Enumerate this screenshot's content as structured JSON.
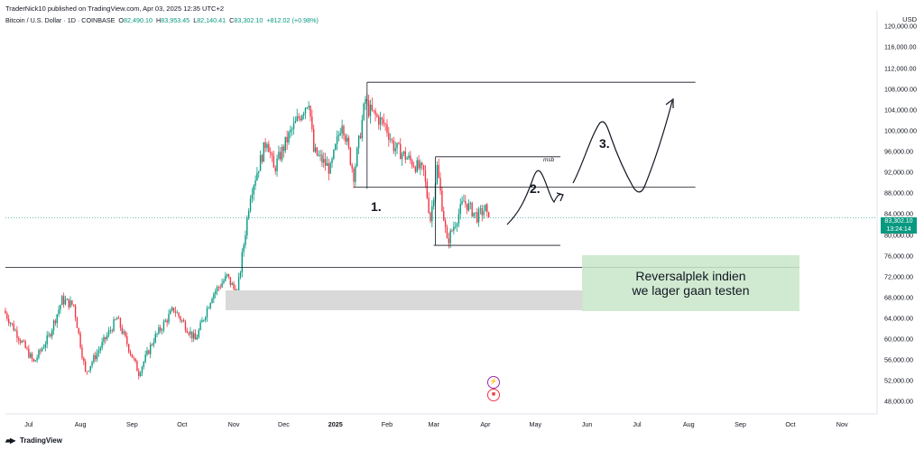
{
  "header": {
    "publisher_line": "TraderNick10 published on TradingView.com, Apr 03, 2025 12:35 UTC+2",
    "symbol_line": "Bitcoin / U.S. Dollar · 1D · COINBASE",
    "ohlc": {
      "o_label": "O",
      "o": "82,490.10",
      "h_label": "H",
      "h": "83,953.45",
      "l_label": "L",
      "l": "82,140.41",
      "c_label": "C",
      "c": "83,302.10",
      "change": "+812.02 (+0.98%)"
    },
    "currency": "USD"
  },
  "price_tag": {
    "price": "83,302.10",
    "countdown": "13:24:14"
  },
  "footer": {
    "logo_text": "TradingView"
  },
  "annotations": {
    "label_1": "1.",
    "label_2": "2.",
    "label_3": "3.",
    "msb": "msb",
    "green_zone_text_line1": "Reversalplek indien",
    "green_zone_text_line2": "we lager gaan testen"
  },
  "colors": {
    "up": "#089981",
    "down": "#f23645",
    "grey_zone": "#d9d9d9",
    "green_zone": "#c8e6c9"
  },
  "chart_data": {
    "type": "candlestick",
    "symbol": "Bitcoin / U.S. Dollar",
    "interval": "1D",
    "exchange": "COINBASE",
    "y_ticks": [
      "48,000.00",
      "52,000.00",
      "56,000.00",
      "60,000.00",
      "64,000.00",
      "68,000.00",
      "72,000.00",
      "76,000.00",
      "80,000.00",
      "84,000.00",
      "88,000.00",
      "92,000.00",
      "96,000.00",
      "100,000.00",
      "104,000.00",
      "108,000.00",
      "112,000.00",
      "116,000.00",
      "120,000.00"
    ],
    "y_range": [
      46000,
      123000
    ],
    "x_ticks": [
      "Jul",
      "Aug",
      "Sep",
      "Oct",
      "Nov",
      "Dec",
      "2025",
      "Feb",
      "Mar",
      "Apr",
      "May",
      "Jun",
      "Jul",
      "Aug",
      "Sep",
      "Oct",
      "Nov"
    ],
    "x_range": [
      "2024-06-17",
      "2025-11-22"
    ],
    "price_path": [
      [
        "2024-06-17",
        65500
      ],
      [
        "2024-06-25",
        61000
      ],
      [
        "2024-07-05",
        55500
      ],
      [
        "2024-07-14",
        60500
      ],
      [
        "2024-07-22",
        67500
      ],
      [
        "2024-07-29",
        66500
      ],
      [
        "2024-08-05",
        53500
      ],
      [
        "2024-08-15",
        59000
      ],
      [
        "2024-08-24",
        64000
      ],
      [
        "2024-09-06",
        53500
      ],
      [
        "2024-09-15",
        60000
      ],
      [
        "2024-09-27",
        65800
      ],
      [
        "2024-10-10",
        59800
      ],
      [
        "2024-10-20",
        68500
      ],
      [
        "2024-10-29",
        72000
      ],
      [
        "2024-11-04",
        68500
      ],
      [
        "2024-11-12",
        88000
      ],
      [
        "2024-11-22",
        98500
      ],
      [
        "2024-11-26",
        92500
      ],
      [
        "2024-12-05",
        99000
      ],
      [
        "2024-12-17",
        106000
      ],
      [
        "2024-12-20",
        96000
      ],
      [
        "2024-12-30",
        92500
      ],
      [
        "2025-01-06",
        102000
      ],
      [
        "2025-01-13",
        91500
      ],
      [
        "2025-01-20",
        106000
      ],
      [
        "2025-01-22",
        104000
      ],
      [
        "2025-02-01",
        101000
      ],
      [
        "2025-02-06",
        97000
      ],
      [
        "2025-02-24",
        92000
      ],
      [
        "2025-02-28",
        83000
      ],
      [
        "2025-03-04",
        93000
      ],
      [
        "2025-03-10",
        78500
      ],
      [
        "2025-03-20",
        86500
      ],
      [
        "2025-03-28",
        83500
      ],
      [
        "2025-04-02",
        85000
      ],
      [
        "2025-04-03",
        83302
      ]
    ],
    "last_close": 83302.1,
    "drawings": {
      "horizontal_line": {
        "price": 73800
      },
      "grey_zone": {
        "from_price": 65500,
        "to_price": 69300,
        "from_date": "2024-10-30",
        "to_date": "2025-06-03"
      },
      "green_zone": {
        "from_price": 65500,
        "to_price": 76600,
        "from_date": "2025-06-03",
        "to_date": "2025-10-31"
      },
      "top_box_line": {
        "price": 109300,
        "from_date": "2025-01-20",
        "to_date": "2025-08-05"
      },
      "range_line_mid": {
        "price": 89200,
        "from_date": "2025-01-12",
        "to_date": "2025-08-05"
      },
      "msb_line": {
        "price": 95000,
        "from_date": "2025-03-02",
        "to_date": "2025-05-16"
      },
      "range_low_line": {
        "price": 78000,
        "from_date": "2025-03-01",
        "to_date": "2025-05-16"
      }
    }
  }
}
